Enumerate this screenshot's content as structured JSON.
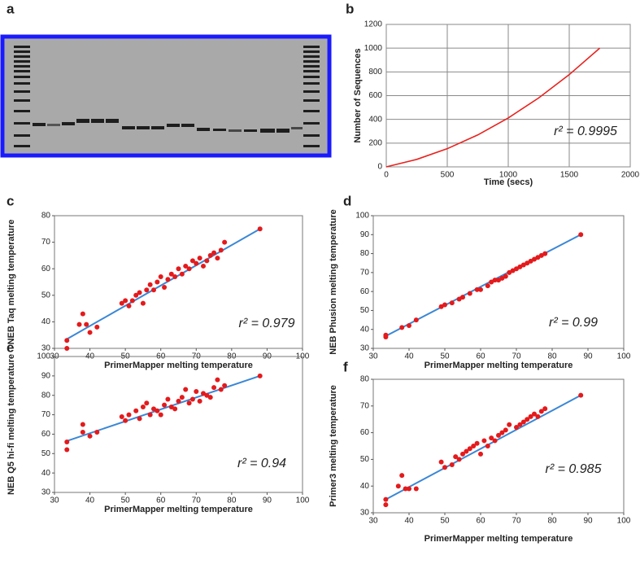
{
  "gel": {
    "panel_label": "a"
  },
  "chart_data": [
    {
      "type": "line",
      "panel_label": "b",
      "x_label": "Time (secs)",
      "y_label": "Number of Sequences",
      "annotation": "r² = 0.9995",
      "grid": true,
      "x": [
        0,
        250,
        500,
        750,
        1000,
        1250,
        1500,
        1750
      ],
      "series": [
        {
          "color": "#e8221e",
          "values": [
            0,
            63,
            153,
            269,
            412,
            581,
            777,
            1000
          ]
        }
      ],
      "xlim": [
        0,
        2000
      ],
      "xticks": [
        0,
        500,
        1000,
        1500,
        2000
      ],
      "ylim": [
        0,
        1200
      ],
      "yticks": [
        0,
        200,
        400,
        600,
        800,
        1000,
        1200
      ]
    },
    {
      "type": "scatter",
      "panel_label": "c",
      "x_label": "PrimerMapper melting temperature",
      "y_label": "NEB Taq melting temperature",
      "annotation": "r² = 0.979",
      "grid": false,
      "x": [
        33.5,
        33.5,
        37,
        38,
        39,
        40,
        42,
        49,
        50,
        51,
        52,
        53,
        54,
        55,
        56,
        57,
        58,
        59,
        60,
        61,
        62,
        63,
        64,
        65,
        66,
        67,
        68,
        69,
        70,
        71,
        72,
        73,
        74,
        75,
        76,
        77,
        78,
        88
      ],
      "series": [
        {
          "color": "#e41a1c",
          "values": [
            30,
            33,
            39,
            43,
            39,
            36,
            38,
            47,
            48,
            46,
            48,
            50,
            51,
            47,
            52,
            54,
            52,
            55,
            57,
            53,
            56,
            58,
            57,
            60,
            58,
            61,
            60,
            63,
            62,
            64,
            61,
            63,
            65,
            66,
            64,
            67,
            70,
            75
          ]
        }
      ],
      "fit": {
        "color": "#3a87d6",
        "x": [
          33.5,
          88
        ],
        "values": [
          33.5,
          75
        ]
      },
      "xlim": [
        30,
        100
      ],
      "xticks": [
        30,
        40,
        50,
        60,
        70,
        80,
        90,
        100
      ],
      "ylim": [
        30,
        80
      ],
      "yticks": [
        30,
        40,
        50,
        60,
        70,
        80
      ]
    },
    {
      "type": "scatter",
      "panel_label": "d",
      "x_label": "PrimerMapper melting temperature",
      "y_label": "NEB Phusion melting temperature",
      "annotation": "r² = 0.99",
      "grid": false,
      "x": [
        33.5,
        33.5,
        38,
        40,
        42,
        49,
        50,
        52,
        54,
        55,
        57,
        59,
        60,
        62,
        63,
        64,
        65,
        66,
        67,
        68,
        69,
        70,
        71,
        72,
        73,
        74,
        75,
        76,
        77,
        78,
        88
      ],
      "series": [
        {
          "color": "#e41a1c",
          "values": [
            36,
            37,
            41,
            42,
            45,
            52,
            53,
            54,
            56,
            57,
            59,
            61,
            61,
            63,
            65,
            66,
            66,
            67,
            68,
            70,
            71,
            72,
            73,
            74,
            75,
            76,
            77,
            78,
            79,
            80,
            90
          ]
        }
      ],
      "fit": {
        "color": "#3a87d6",
        "x": [
          33.5,
          88
        ],
        "values": [
          36.5,
          90
        ]
      },
      "xlim": [
        30,
        100
      ],
      "xticks": [
        30,
        40,
        50,
        60,
        70,
        80,
        90,
        100
      ],
      "ylim": [
        30,
        100
      ],
      "yticks": [
        30,
        40,
        50,
        60,
        70,
        80,
        90,
        100
      ]
    },
    {
      "type": "scatter",
      "panel_label": "e",
      "x_label": "PrimerMapper melting temperature",
      "y_label": "NEB Q5 hi-fi melting temperature",
      "annotation": "r² = 0.94",
      "grid": false,
      "x": [
        33.5,
        33.5,
        38,
        38,
        40,
        42,
        49,
        50,
        51,
        53,
        54,
        55,
        56,
        57,
        58,
        59,
        60,
        61,
        62,
        63,
        64,
        65,
        66,
        67,
        68,
        69,
        70,
        71,
        72,
        73,
        74,
        75,
        76,
        77,
        78,
        88
      ],
      "series": [
        {
          "color": "#e41a1c",
          "values": [
            52,
            56,
            65,
            61,
            59,
            61,
            69,
            67,
            70,
            72,
            68,
            74,
            76,
            70,
            73,
            72,
            70,
            75,
            78,
            74,
            73,
            77,
            79,
            83,
            76,
            78,
            82,
            77,
            81,
            80,
            79,
            84,
            88,
            83,
            85,
            90
          ]
        }
      ],
      "fit": {
        "color": "#3a87d6",
        "x": [
          33.5,
          88
        ],
        "values": [
          56.5,
          90
        ]
      },
      "xlim": [
        30,
        100
      ],
      "xticks": [
        30,
        40,
        50,
        60,
        70,
        80,
        90,
        100
      ],
      "ylim": [
        30,
        100
      ],
      "yticks": [
        30,
        40,
        50,
        60,
        70,
        80,
        90,
        100
      ]
    },
    {
      "type": "scatter",
      "panel_label": "f",
      "x_label": "PrimerMapper melting temperature",
      "y_label": "Primer3 melting temperature",
      "annotation": "r² = 0.985",
      "grid": false,
      "x": [
        33.5,
        33.5,
        37,
        38,
        39,
        40,
        42,
        49,
        50,
        52,
        53,
        54,
        55,
        56,
        57,
        58,
        59,
        60,
        61,
        62,
        63,
        64,
        65,
        66,
        67,
        68,
        70,
        71,
        72,
        73,
        74,
        75,
        76,
        77,
        78,
        88
      ],
      "series": [
        {
          "color": "#e41a1c",
          "values": [
            33,
            35,
            40,
            44,
            39,
            39,
            39,
            49,
            47,
            48,
            51,
            50,
            52,
            53,
            54,
            55,
            56,
            52,
            57,
            55,
            58,
            57,
            59,
            60,
            61,
            63,
            62,
            63,
            64,
            65,
            66,
            67,
            66,
            68,
            69,
            74
          ]
        }
      ],
      "fit": {
        "color": "#3a87d6",
        "x": [
          33.5,
          88
        ],
        "values": [
          35,
          74
        ]
      },
      "xlim": [
        30,
        100
      ],
      "xticks": [
        30,
        40,
        50,
        60,
        70,
        80,
        90,
        100
      ],
      "ylim": [
        30,
        80
      ],
      "yticks": [
        30,
        40,
        50,
        60,
        70,
        80
      ]
    }
  ]
}
